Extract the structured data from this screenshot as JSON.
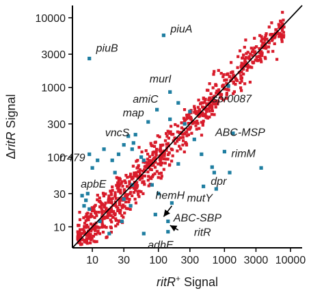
{
  "chart_data": {
    "type": "scatter",
    "x_scale": "log",
    "y_scale": "log",
    "xlim": [
      5,
      15000
    ],
    "ylim": [
      5,
      15000
    ],
    "grid": false,
    "colors": {
      "bulk": "#d81b2a",
      "highlight": "#1f7ea1",
      "axes": "#000000",
      "diagonal": "#000000"
    },
    "x_axis": {
      "ticks": [
        10,
        30,
        100,
        300,
        1000,
        3000,
        10000
      ],
      "tick_labels": [
        "10",
        "30",
        "100",
        "300",
        "1000",
        "3000",
        "10000"
      ],
      "label_parts": [
        {
          "text": "ritR",
          "style": "italic"
        },
        {
          "text": "+",
          "style": "sup"
        },
        {
          "text": " Signal",
          "style": "normal"
        }
      ]
    },
    "y_axis": {
      "ticks": [
        10,
        30,
        100,
        300,
        1000,
        3000,
        10000
      ],
      "tick_labels": [
        "10",
        "30",
        "100",
        "300",
        "1000",
        "3000",
        "10000"
      ],
      "label_parts": [
        {
          "text": "Δ",
          "style": "normal"
        },
        {
          "text": "ritR",
          "style": "italic"
        },
        {
          "text": " Signal",
          "style": "normal"
        }
      ]
    },
    "diagonal": {
      "from": 5,
      "to": 15000
    },
    "highlighted_points": [
      {
        "label": "piuA",
        "x": 120,
        "y": 5600
      },
      {
        "label": "piuB",
        "x": 9,
        "y": 2600
      },
      {
        "label": "murI",
        "x": 150,
        "y": 860
      },
      {
        "label": "amiC",
        "x": 95,
        "y": 480
      },
      {
        "label": "map",
        "x": 70,
        "y": 320
      },
      {
        "label": "vncS",
        "x": 42,
        "y": 160
      },
      {
        "label": "rr479",
        "x": 9,
        "y": 110
      },
      {
        "label": "apbE",
        "x": 7,
        "y": 28
      },
      {
        "label": "spr0087",
        "x": 1150,
        "y": 1050
      },
      {
        "label": "ABC-MSP",
        "x": 1350,
        "y": 220
      },
      {
        "label": "rimM",
        "x": 1000,
        "y": 120
      },
      {
        "label": "dpr",
        "x": 650,
        "y": 72
      },
      {
        "label": "mutY",
        "x": 480,
        "y": 38
      },
      {
        "label": "hemH",
        "x": 160,
        "y": 22
      },
      {
        "label": "ABC-SBP",
        "x": 140,
        "y": 12
      },
      {
        "label": "adhE",
        "x": 60,
        "y": 8
      },
      {
        "label": "ritR",
        "x": 140,
        "y": 8.5
      }
    ],
    "extra_blue_points": [
      {
        "x": 8,
        "y": 24
      },
      {
        "x": 7.5,
        "y": 20
      },
      {
        "x": 9,
        "y": 18
      },
      {
        "x": 8.5,
        "y": 30
      },
      {
        "x": 10,
        "y": 70
      },
      {
        "x": 12,
        "y": 90
      },
      {
        "x": 15,
        "y": 130
      },
      {
        "x": 20,
        "y": 90
      },
      {
        "x": 25,
        "y": 110
      },
      {
        "x": 30,
        "y": 150
      },
      {
        "x": 35,
        "y": 200
      },
      {
        "x": 40,
        "y": 130
      },
      {
        "x": 55,
        "y": 100
      },
      {
        "x": 60,
        "y": 90
      },
      {
        "x": 45,
        "y": 210
      },
      {
        "x": 22,
        "y": 60
      },
      {
        "x": 30,
        "y": 25
      },
      {
        "x": 38,
        "y": 20
      },
      {
        "x": 80,
        "y": 40
      },
      {
        "x": 100,
        "y": 30
      },
      {
        "x": 13,
        "y": 12
      },
      {
        "x": 18,
        "y": 8
      },
      {
        "x": 28,
        "y": 12
      },
      {
        "x": 90,
        "y": 15
      },
      {
        "x": 200,
        "y": 600
      },
      {
        "x": 300,
        "y": 450
      },
      {
        "x": 350,
        "y": 180
      },
      {
        "x": 250,
        "y": 300
      },
      {
        "x": 700,
        "y": 60
      },
      {
        "x": 450,
        "y": 110
      },
      {
        "x": 3600,
        "y": 70
      },
      {
        "x": 1200,
        "y": 60
      },
      {
        "x": 750,
        "y": 35
      },
      {
        "x": 200,
        "y": 80
      },
      {
        "x": 40,
        "y": 40
      },
      {
        "x": 150,
        "y": 350
      }
    ],
    "arrows": [
      {
        "label": "hemH",
        "tail": [
          160,
          20
        ],
        "head": [
          120,
          14
        ]
      },
      {
        "label": "ritR",
        "tail": [
          200,
          9
        ],
        "head": [
          150,
          10.5
        ]
      }
    ]
  }
}
